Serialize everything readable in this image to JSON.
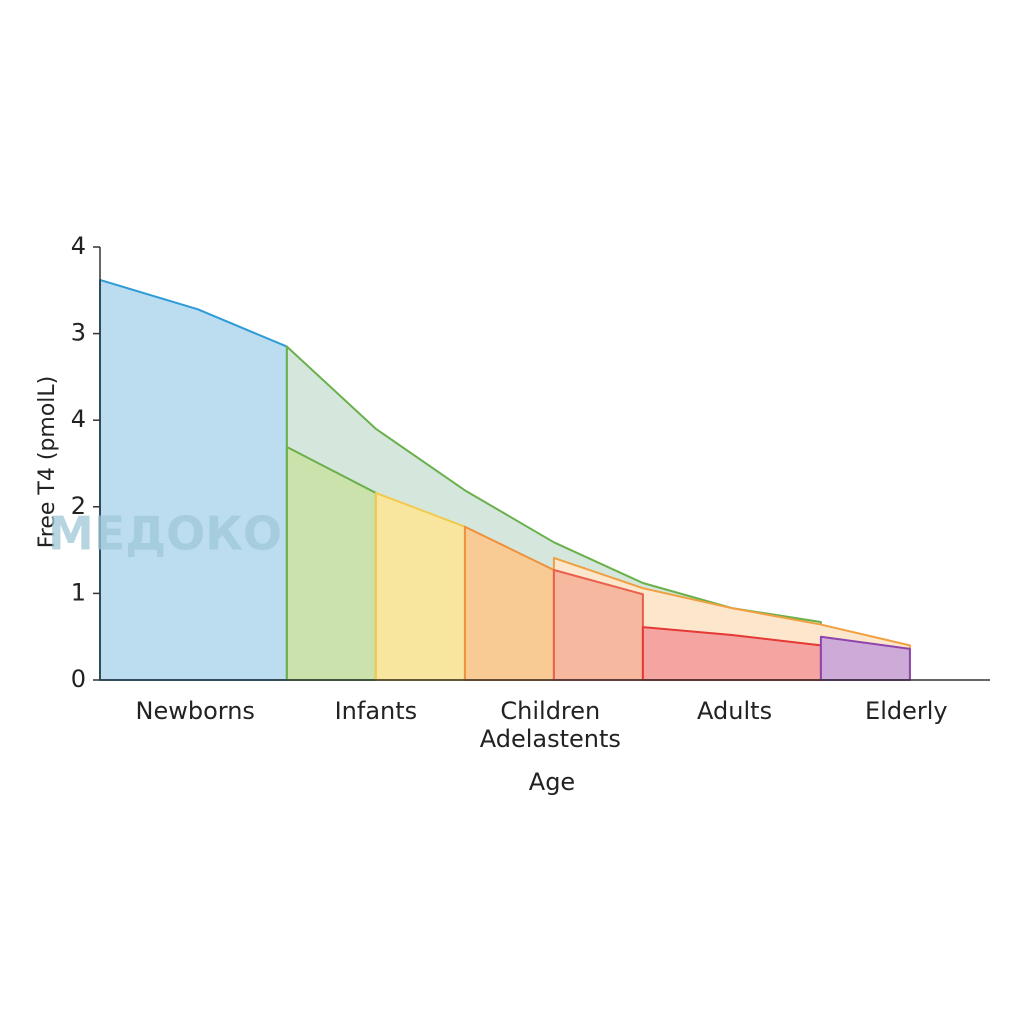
{
  "chart_data": {
    "type": "area",
    "y_label": "Free T4 (pmolL)",
    "x_label": "Age",
    "watermark": "МЕДОКО",
    "xlim": [
      0,
      10
    ],
    "ylim": [
      0,
      5
    ],
    "yticks": [
      0,
      1,
      2,
      {
        "value": 3,
        "label": "4"
      },
      {
        "value": 4,
        "label": "3"
      },
      {
        "value": 5,
        "label": "4"
      }
    ],
    "xticks": [
      {
        "value": 1.07,
        "label": "Newborns"
      },
      {
        "value": 3.1,
        "label": "Infants"
      },
      {
        "value": 5.06,
        "label": "Children\nAdelastents"
      },
      {
        "value": 7.13,
        "label": "Adults"
      },
      {
        "value": 9.06,
        "label": "Elderly"
      }
    ],
    "series": [
      {
        "color": "#2f9bd8",
        "fill": "#bcdcf0",
        "x": [
          0,
          1.1,
          2.1
        ],
        "values": [
          4.62,
          4.28,
          3.85
        ]
      },
      {
        "color": "#6ab04c",
        "fill": "#d5e7dc",
        "x": [
          2.1,
          3.1,
          4.1,
          5.1,
          6.1,
          7.1,
          8.1
        ],
        "values": [
          3.85,
          2.9,
          2.19,
          1.59,
          1.12,
          0.83,
          0.67
        ]
      },
      {
        "color": "#f0a040",
        "fill": "#fce6cc",
        "x": [
          5.1,
          6.1,
          7.1,
          8.1,
          9.1
        ],
        "values": [
          1.41,
          1.06,
          0.83,
          0.64,
          0.4
        ]
      },
      {
        "color": "#6ab04c",
        "fill": "#cce2ad",
        "x": [
          2.1,
          3.1
        ],
        "values": [
          2.69,
          2.16
        ]
      },
      {
        "color": "#f2c94c",
        "fill": "#f9e69e",
        "x": [
          3.1,
          4.1
        ],
        "values": [
          2.16,
          1.77
        ]
      },
      {
        "color": "#f0903a",
        "fill": "#f8cb94",
        "x": [
          4.1,
          5.1
        ],
        "values": [
          1.77,
          1.27
        ]
      },
      {
        "color": "#e8604c",
        "fill": "#f6b89f",
        "x": [
          5.1,
          6.1
        ],
        "values": [
          1.27,
          0.99
        ]
      },
      {
        "color": "#e53935",
        "fill": "#f4a5a2",
        "x": [
          6.1,
          7.1,
          8.1
        ],
        "values": [
          0.61,
          0.52,
          0.4
        ]
      },
      {
        "color": "#8e44ad",
        "fill": "#cdaad8",
        "x": [
          8.1,
          9.1
        ],
        "values": [
          0.5,
          0.36
        ]
      }
    ]
  }
}
